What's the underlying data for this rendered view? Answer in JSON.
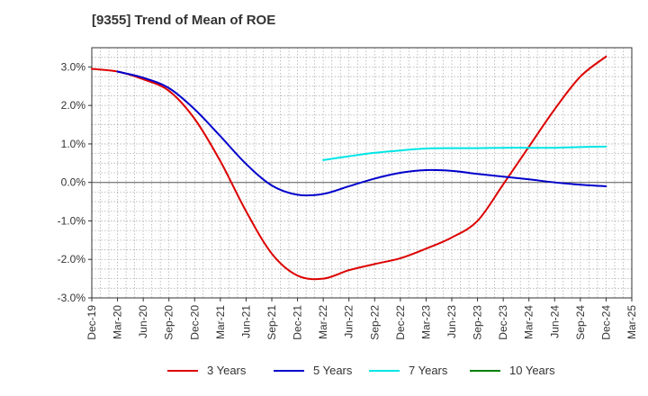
{
  "chart_data": {
    "type": "line",
    "title": "[9355]  Trend of Mean of ROE",
    "xlabel": "",
    "ylabel": "",
    "x": [
      "Dec-19",
      "Mar-20",
      "Jun-20",
      "Sep-20",
      "Dec-20",
      "Mar-21",
      "Jun-21",
      "Sep-21",
      "Dec-21",
      "Mar-22",
      "Jun-22",
      "Sep-22",
      "Dec-22",
      "Mar-23",
      "Jun-23",
      "Sep-23",
      "Dec-23",
      "Mar-24",
      "Jun-24",
      "Sep-24",
      "Dec-24",
      "Mar-25"
    ],
    "ylim": [
      -3.0,
      3.5
    ],
    "yticks": [
      -3.0,
      -2.0,
      -1.0,
      0.0,
      1.0,
      2.0,
      3.0
    ],
    "ytick_labels": [
      "-3.0%",
      "-2.0%",
      "-1.0%",
      "0.0%",
      "1.0%",
      "2.0%",
      "3.0%"
    ],
    "grid": true,
    "legend_position": "bottom",
    "series": [
      {
        "name": "3 Years",
        "color": "#dd0000",
        "values": [
          2.95,
          2.88,
          2.68,
          2.38,
          1.65,
          0.55,
          -0.75,
          -1.85,
          -2.42,
          -2.5,
          -2.28,
          -2.12,
          -1.97,
          -1.72,
          -1.43,
          -1.0,
          -0.05,
          0.93,
          1.9,
          2.75,
          3.27,
          null
        ]
      },
      {
        "name": "5 Years",
        "color": "#0000cc",
        "values": [
          null,
          2.88,
          2.72,
          2.45,
          1.9,
          1.2,
          0.48,
          -0.08,
          -0.32,
          -0.3,
          -0.1,
          0.1,
          0.25,
          0.32,
          0.3,
          0.22,
          0.15,
          0.08,
          0.0,
          -0.06,
          -0.1,
          null
        ]
      },
      {
        "name": "7 Years",
        "color": "#00e5e5",
        "values": [
          null,
          null,
          null,
          null,
          null,
          null,
          null,
          null,
          null,
          0.58,
          0.68,
          0.77,
          0.83,
          0.88,
          0.89,
          0.89,
          0.9,
          0.9,
          0.9,
          0.92,
          0.93,
          null
        ]
      },
      {
        "name": "10 Years",
        "color": "#008000",
        "values": [
          null,
          null,
          null,
          null,
          null,
          null,
          null,
          null,
          null,
          null,
          null,
          null,
          null,
          null,
          null,
          null,
          null,
          null,
          null,
          null,
          null,
          null
        ]
      }
    ]
  }
}
